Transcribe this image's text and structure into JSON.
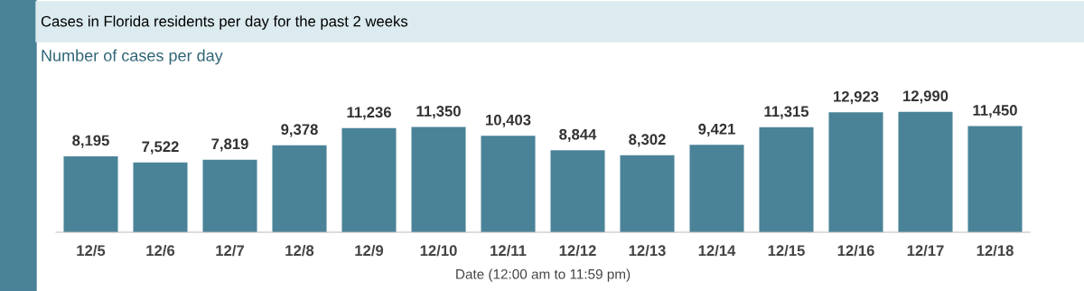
{
  "chart_data": {
    "type": "bar",
    "title": "Cases in Florida residents per day for the past 2 weeks",
    "subtitle": "Number of cases per day",
    "xlabel": "Date (12:00 am to 11:59 pm)",
    "categories": [
      "12/5",
      "12/6",
      "12/7",
      "12/8",
      "12/9",
      "12/10",
      "12/11",
      "12/12",
      "12/13",
      "12/14",
      "12/15",
      "12/16",
      "12/17",
      "12/18"
    ],
    "values": [
      8195,
      7522,
      7819,
      9378,
      11236,
      11350,
      10403,
      8844,
      8302,
      9421,
      11315,
      12923,
      12990,
      11450
    ],
    "value_labels": [
      "8,195",
      "7,522",
      "7,819",
      "9,378",
      "11,236",
      "11,350",
      "10,403",
      "8,844",
      "8,302",
      "9,421",
      "11,315",
      "12,923",
      "12,990",
      "11,450"
    ],
    "color": "#4a8398",
    "grid": false,
    "legend": false
  }
}
